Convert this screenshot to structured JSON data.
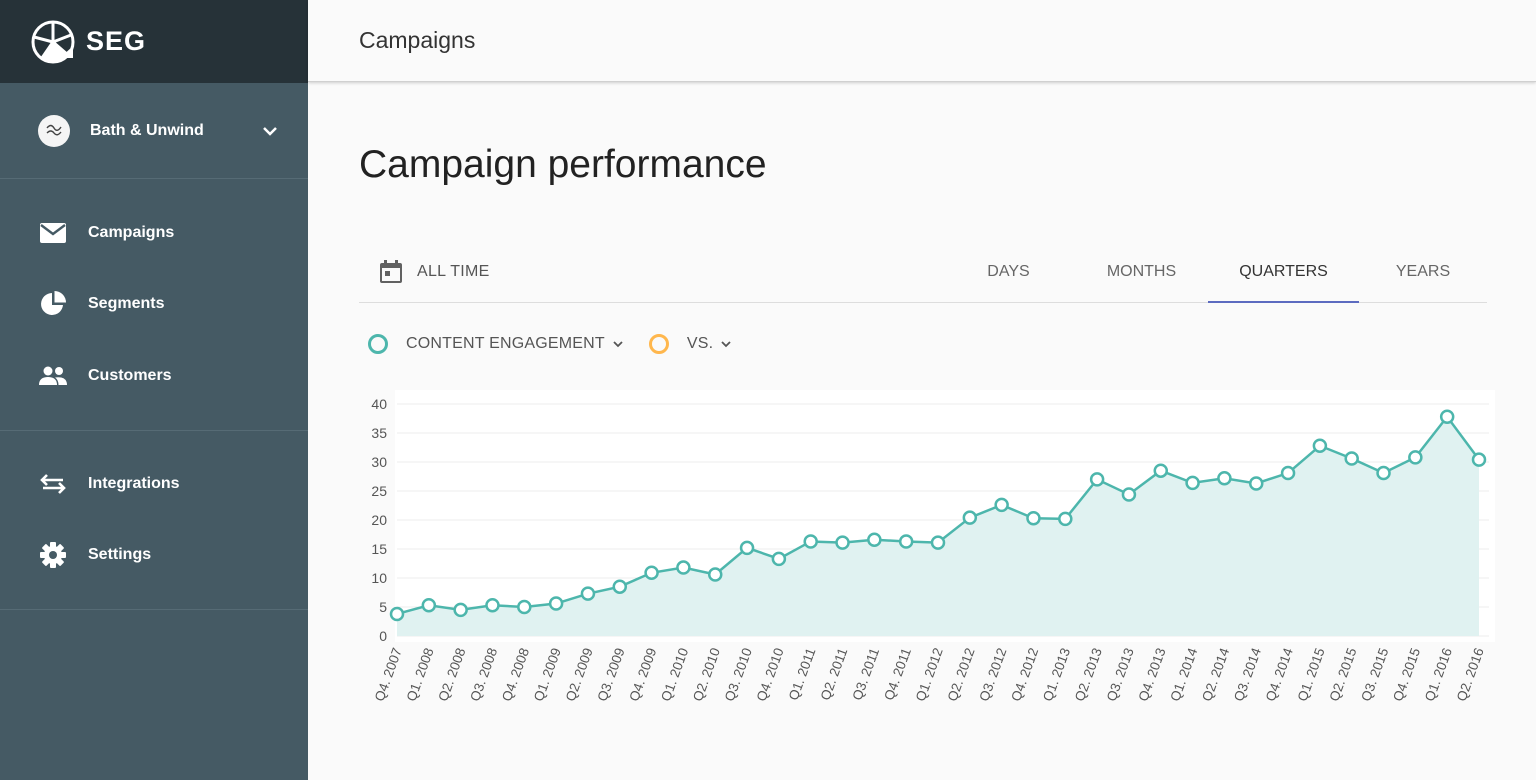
{
  "brand": {
    "name": "SEG"
  },
  "account": {
    "name": "Bath & Unwind"
  },
  "nav": {
    "primary": [
      {
        "label": "Campaigns",
        "icon": "mail-icon"
      },
      {
        "label": "Segments",
        "icon": "pie-icon"
      },
      {
        "label": "Customers",
        "icon": "people-icon"
      }
    ],
    "secondary": [
      {
        "label": "Integrations",
        "icon": "swap-icon"
      },
      {
        "label": "Settings",
        "icon": "gear-icon"
      }
    ]
  },
  "header": {
    "title": "Campaigns"
  },
  "page": {
    "title": "Campaign performance"
  },
  "toolbar": {
    "date_range": "ALL TIME",
    "tabs": [
      "DAYS",
      "MONTHS",
      "QUARTERS",
      "YEARS"
    ],
    "active_tab": "QUARTERS"
  },
  "metrics": {
    "primary": "CONTENT ENGAGEMENT",
    "secondary": "VS."
  },
  "colors": {
    "sidebar": "#455a64",
    "brand_bar": "#263238",
    "series": "#4db6ac",
    "series_fill": "#e0f2f1",
    "compare": "#ffb74d",
    "tab_underline": "#5c6bc0"
  },
  "chart_data": {
    "type": "area",
    "x": [
      "Q4. 2007",
      "Q1. 2008",
      "Q2. 2008",
      "Q3. 2008",
      "Q4. 2008",
      "Q1. 2009",
      "Q2. 2009",
      "Q3. 2009",
      "Q4. 2009",
      "Q1. 2010",
      "Q2. 2010",
      "Q3. 2010",
      "Q4. 2010",
      "Q1. 2011",
      "Q2. 2011",
      "Q3. 2011",
      "Q4. 2011",
      "Q1. 2012",
      "Q2. 2012",
      "Q3. 2012",
      "Q4. 2012",
      "Q1. 2013",
      "Q2. 2013",
      "Q3. 2013",
      "Q4. 2013",
      "Q1. 2014",
      "Q2. 2014",
      "Q3. 2014",
      "Q4. 2014",
      "Q1. 2015",
      "Q2. 2015",
      "Q3. 2015",
      "Q4. 2015",
      "Q1. 2016",
      "Q2. 2016"
    ],
    "series": [
      {
        "values": [
          3.8,
          5.3,
          4.5,
          5.3,
          5.0,
          5.6,
          7.3,
          8.5,
          10.9,
          11.8,
          10.6,
          15.2,
          13.3,
          16.3,
          16.1,
          16.6,
          16.3,
          16.1,
          20.4,
          22.6,
          20.3,
          20.2,
          27.0,
          24.4,
          28.5,
          26.4,
          27.2,
          26.3,
          28.1,
          32.8,
          30.6,
          28.1,
          30.8,
          37.8,
          30.4
        ]
      }
    ],
    "yticks": [
      0,
      5,
      10,
      15,
      20,
      25,
      30,
      35,
      40
    ],
    "ylim": [
      0,
      40
    ],
    "grid": true
  }
}
